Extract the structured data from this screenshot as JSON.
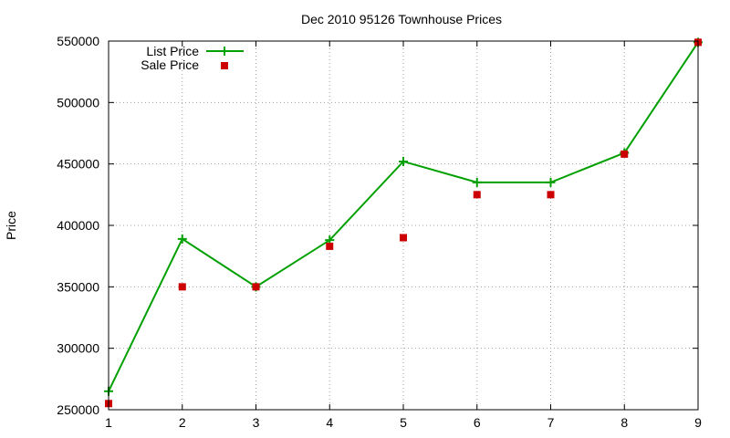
{
  "chart_data": {
    "type": "line",
    "title": "Dec 2010 95126 Townhouse Prices",
    "xlabel": "",
    "ylabel": "Price",
    "x": [
      1,
      2,
      3,
      4,
      5,
      6,
      7,
      8,
      9
    ],
    "xlim": [
      1,
      9
    ],
    "ylim": [
      250000,
      550000
    ],
    "xticks": [
      "1",
      "2",
      "3",
      "4",
      "5",
      "6",
      "7",
      "8",
      "9"
    ],
    "yticks": [
      "250000",
      "300000",
      "350000",
      "400000",
      "450000",
      "500000",
      "550000"
    ],
    "grid": true,
    "legend_position": "top-left",
    "series": [
      {
        "name": "List Price",
        "style": "line-with-plus-markers",
        "color": "#00a000",
        "values": [
          265000,
          389000,
          350000,
          388000,
          452000,
          435000,
          435000,
          459000,
          549000
        ]
      },
      {
        "name": "Sale Price",
        "style": "square-markers",
        "color": "#cc0000",
        "values": [
          255000,
          350000,
          350000,
          383000,
          390000,
          425000,
          425000,
          458000,
          549000
        ]
      }
    ]
  }
}
